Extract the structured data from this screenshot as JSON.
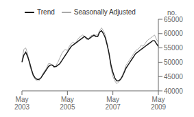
{
  "chart_data": {
    "type": "line",
    "y_label": "no.",
    "categories": [
      "May\n2003",
      null,
      null,
      null,
      null,
      null,
      null,
      null,
      null,
      null,
      null,
      null,
      null,
      null,
      null,
      null,
      null,
      null,
      null,
      null,
      null,
      null,
      null,
      null,
      "May\n2005",
      null,
      null,
      null,
      null,
      null,
      null,
      null,
      null,
      null,
      null,
      null,
      null,
      null,
      null,
      null,
      null,
      null,
      null,
      null,
      null,
      null,
      null,
      null,
      "May\n2007",
      null,
      null,
      null,
      null,
      null,
      null,
      null,
      null,
      null,
      null,
      null,
      null,
      null,
      null,
      null,
      null,
      null,
      null,
      null,
      null,
      null,
      null,
      null,
      "May\n2009"
    ],
    "series": [
      {
        "name": "Trend",
        "color": "#1a1a1a",
        "values": [
          50000,
          52500,
          53500,
          52000,
          50000,
          47500,
          45500,
          44500,
          44000,
          44000,
          44500,
          45500,
          46500,
          47500,
          48500,
          49000,
          49000,
          48500,
          48500,
          49000,
          49500,
          50500,
          51500,
          52500,
          53500,
          54500,
          55500,
          56000,
          56500,
          57000,
          57500,
          58000,
          58500,
          59000,
          58500,
          58000,
          58500,
          59000,
          59500,
          59000,
          59000,
          60500,
          61000,
          60000,
          58500,
          56000,
          53000,
          49000,
          46500,
          44500,
          43500,
          43500,
          44000,
          45000,
          46500,
          48000,
          49000,
          50000,
          51000,
          52000,
          53000,
          53500,
          54000,
          54500,
          55000,
          55500,
          56000,
          56500,
          57000,
          57500,
          57500,
          56500,
          55500
        ]
      },
      {
        "name": "Seasonally Adjusted",
        "color": "#aaaaaa",
        "values": [
          50500,
          54500,
          55000,
          53000,
          49000,
          47000,
          45000,
          44000,
          43500,
          43500,
          44500,
          46000,
          47000,
          48000,
          49500,
          49500,
          49000,
          48000,
          49000,
          50000,
          51500,
          53000,
          54000,
          54500,
          54000,
          55500,
          56500,
          57000,
          56500,
          57500,
          58500,
          59000,
          59500,
          59000,
          58000,
          58000,
          59000,
          59500,
          59000,
          59500,
          59500,
          61000,
          62000,
          61000,
          59500,
          56500,
          52500,
          48000,
          45000,
          43500,
          42500,
          43000,
          44000,
          45500,
          47000,
          49000,
          50000,
          51000,
          52000,
          53000,
          54000,
          54500,
          55000,
          56000,
          55500,
          56500,
          57500,
          58000,
          58500,
          59000,
          59500,
          58000,
          57000
        ]
      }
    ],
    "ylim": [
      40000,
      65000
    ],
    "yticks": [
      40000,
      45000,
      50000,
      55000,
      60000,
      65000
    ],
    "legend": "upper left",
    "grid": false
  }
}
